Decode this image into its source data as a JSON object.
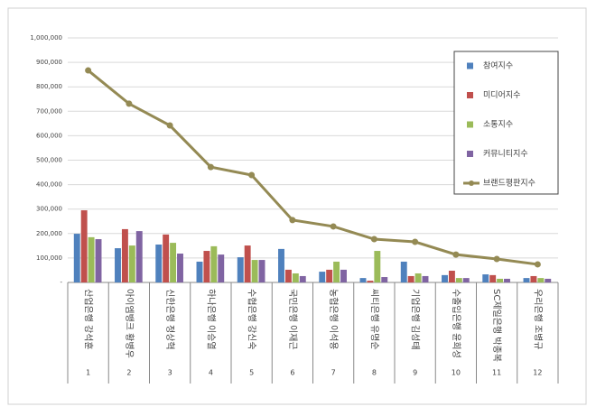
{
  "chart_data": {
    "type": "bar",
    "categories": [
      "1",
      "2",
      "3",
      "4",
      "5",
      "6",
      "7",
      "8",
      "9",
      "10",
      "11",
      "12"
    ],
    "names": [
      "산업은행 강석훈",
      "아이엠뱅크 황병우",
      "신한은행 정상혁",
      "하나은행 이승열",
      "수협은행 강신숙",
      "국민은행 이재근",
      "농협은행 이석용",
      "씨티은행 유명순",
      "기업은행 김성태",
      "수출입은행 윤희성",
      "SC제일은행 박종복",
      "우리은행 조병규"
    ],
    "series": [
      {
        "name": "참여지수",
        "color": "#4f81bd",
        "values": [
          199000,
          140000,
          155000,
          85000,
          103000,
          137000,
          44000,
          18000,
          85000,
          30000,
          33000,
          18000
        ]
      },
      {
        "name": "미디어지수",
        "color": "#c0504d",
        "values": [
          295000,
          218000,
          196000,
          129000,
          151000,
          52000,
          52000,
          7000,
          26000,
          48000,
          30000,
          26000
        ]
      },
      {
        "name": "소통지수",
        "color": "#9bbb59",
        "values": [
          185000,
          151000,
          162000,
          148000,
          92000,
          37000,
          85000,
          129000,
          37000,
          18000,
          15000,
          18000
        ]
      },
      {
        "name": "커뮤니티지수",
        "color": "#8064a2",
        "values": [
          177000,
          210000,
          118000,
          114000,
          92000,
          26000,
          52000,
          22000,
          26000,
          18000,
          15000,
          15000
        ]
      },
      {
        "name": "브랜드평판지수",
        "color": "#948a54",
        "type": "line",
        "values": [
          867000,
          731000,
          642000,
          472000,
          439000,
          255000,
          229000,
          177000,
          166000,
          114000,
          96000,
          74000
        ]
      }
    ],
    "ylim": [
      0,
      1000000
    ],
    "yticks": [
      {
        "value": 0,
        "label": "-"
      },
      {
        "value": 100000,
        "label": "100,000"
      },
      {
        "value": 200000,
        "label": "200,000"
      },
      {
        "value": 300000,
        "label": "300,000"
      },
      {
        "value": 400000,
        "label": "400,000"
      },
      {
        "value": 500000,
        "label": "500,000"
      },
      {
        "value": 600000,
        "label": "600,000"
      },
      {
        "value": 700000,
        "label": "700,000"
      },
      {
        "value": 800000,
        "label": "800,000"
      },
      {
        "value": 900000,
        "label": "900,000"
      },
      {
        "value": 1000000,
        "label": "1,000,000"
      }
    ],
    "grid": true,
    "legend": "right"
  }
}
